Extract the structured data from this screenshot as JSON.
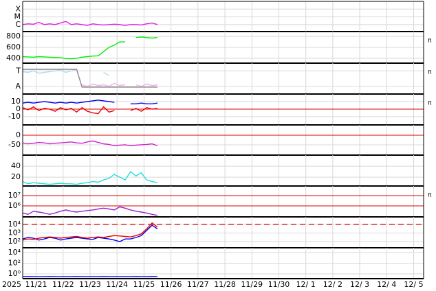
{
  "chart_data": [
    {
      "type": "line",
      "x": [
        0,
        0.2,
        0.4,
        0.6,
        0.8,
        1,
        1.2,
        1.4,
        1.6,
        1.8,
        2,
        2.2,
        2.4,
        2.6,
        2.8,
        3,
        3.2,
        3.4,
        3.6,
        3.8,
        4,
        4.2,
        4.4,
        4.6,
        4.8,
        5
      ],
      "xlim": [
        0,
        14.87
      ],
      "ylim": [
        0.1,
        4
      ],
      "yticks": [
        {
          "value": 3,
          "label": "X"
        },
        {
          "value": 2,
          "label": "M"
        },
        {
          "value": 1,
          "label": "C"
        }
      ],
      "series": [
        {
          "color": "#e020e0",
          "values": [
            1.0,
            1.1,
            1.05,
            1.3,
            1.0,
            1.1,
            1.0,
            1.2,
            1.4,
            1.0,
            1.1,
            1.0,
            0.9,
            1.1,
            1.0,
            0.95,
            1.0,
            1.05,
            1.0,
            0.9,
            1.0,
            1.0,
            0.95,
            1.1,
            1.2,
            1.0
          ]
        }
      ]
    },
    {
      "type": "line",
      "x": [
        0,
        0.2,
        0.4,
        0.6,
        0.8,
        1,
        1.2,
        1.4,
        1.6,
        1.8,
        2,
        2.2,
        2.4,
        2.6,
        2.8,
        3,
        3.2,
        3.4,
        3.6,
        3.8,
        4,
        4.2,
        4.4,
        4.6,
        4.8,
        5
      ],
      "xlim": [
        0,
        14.87
      ],
      "ylim": [
        310,
        890
      ],
      "yticks": [
        400,
        600,
        800
      ],
      "flag": "π",
      "series": [
        {
          "color": "#00ee00",
          "values": [
            430,
            425,
            420,
            430,
            425,
            420,
            415,
            410,
            395,
            390,
            400,
            420,
            430,
            440,
            445,
            520,
            600,
            640,
            700,
            700,
            null,
            780,
            790,
            780,
            770,
            780
          ]
        }
      ]
    },
    {
      "type": "line",
      "x": [
        0,
        0.2,
        0.4,
        0.6,
        0.8,
        1,
        1.2,
        1.4,
        1.6,
        1.8,
        2,
        2.2,
        2.4,
        2.6,
        2.8,
        3,
        3.2,
        3.4,
        3.6,
        3.8,
        4,
        4.2,
        4.4,
        4.6,
        4.8,
        5
      ],
      "xlim": [
        0,
        14.87
      ],
      "ylim": [
        -0.5,
        1.5
      ],
      "yticks": [
        {
          "value": 1,
          "label": "T"
        },
        {
          "value": 0,
          "label": "A"
        }
      ],
      "flag": "π",
      "series": [
        {
          "color": "#b0dcf0",
          "values": [
            0.95,
            0.9,
            1.0,
            0.85,
            0.9,
            0.95,
            1.0,
            1.05,
            0.9,
            1.0,
            1.1,
            null,
            null,
            null,
            null,
            0.9,
            0.7,
            null,
            null,
            null,
            null,
            null,
            null,
            null,
            null,
            null
          ]
        },
        {
          "color": "#f4b0ec",
          "values": [
            null,
            null,
            null,
            null,
            null,
            null,
            null,
            null,
            null,
            null,
            null,
            0.1,
            0.0,
            0.15,
            0.05,
            0.1,
            0.0,
            0.2,
            0.05,
            0.1,
            null,
            0.1,
            0.0,
            0.15,
            0.05,
            0.1
          ]
        },
        {
          "color": "#888888",
          "values": [
            1.1,
            1.1,
            1.1,
            1.1,
            1.1,
            1.1,
            1.1,
            1.1,
            1.1,
            1.1,
            1.1,
            -0.05,
            -0.05,
            -0.05,
            -0.05,
            -0.05,
            -0.05,
            -0.05,
            -0.05,
            -0.05,
            -0.05,
            -0.05,
            -0.05,
            -0.05,
            -0.05,
            -0.05
          ]
        }
      ]
    },
    {
      "type": "line",
      "x": [
        0,
        0.2,
        0.4,
        0.6,
        0.8,
        1,
        1.2,
        1.4,
        1.6,
        1.8,
        2,
        2.2,
        2.4,
        2.6,
        2.8,
        3,
        3.2,
        3.4,
        3.6,
        3.8,
        4,
        4.2,
        4.4,
        4.6,
        4.8,
        5
      ],
      "xlim": [
        0,
        14.87
      ],
      "ylim": [
        -21,
        20
      ],
      "yticks": [
        10,
        0,
        -10
      ],
      "flag": "π",
      "refs": [
        {
          "value": 0,
          "color": "#dd0000"
        }
      ],
      "series": [
        {
          "color": "#0000ee",
          "values": [
            8,
            9,
            8,
            9,
            10,
            9,
            8,
            9,
            8,
            9,
            8,
            9,
            10,
            11,
            12,
            11,
            10,
            9,
            null,
            null,
            7,
            7,
            8,
            7,
            7,
            8
          ]
        },
        {
          "color": "#ee0000",
          "values": [
            2,
            -1,
            3,
            -2,
            1,
            0,
            -3,
            2,
            -1,
            1,
            -4,
            2,
            -3,
            -5,
            -6,
            3,
            -4,
            -2,
            null,
            null,
            -2,
            1,
            -3,
            2,
            0,
            1
          ]
        }
      ]
    },
    {
      "type": "line",
      "x": [
        0,
        0.2,
        0.4,
        0.6,
        0.8,
        1,
        1.2,
        1.4,
        1.6,
        1.8,
        2,
        2.2,
        2.4,
        2.6,
        2.8,
        3,
        3.2,
        3.4,
        3.6,
        3.8,
        4,
        4.2,
        4.4,
        4.6,
        4.8,
        5
      ],
      "xlim": [
        0,
        14.87
      ],
      "ylim": [
        -104,
        54
      ],
      "yticks": [
        0,
        -50
      ],
      "refs": [
        {
          "value": 0,
          "color": "#dd0000"
        }
      ],
      "series": [
        {
          "color": "#cc22cc",
          "values": [
            -40,
            -45,
            -42,
            -38,
            -40,
            -45,
            -42,
            -40,
            -38,
            -35,
            -40,
            -42,
            -35,
            -30,
            -38,
            -45,
            -48,
            -55,
            -52,
            -50,
            -55,
            -52,
            -50,
            -48,
            -45,
            -55
          ]
        }
      ]
    },
    {
      "type": "line",
      "x": [
        0,
        0.2,
        0.4,
        0.6,
        0.8,
        1,
        1.2,
        1.4,
        1.6,
        1.8,
        2,
        2.2,
        2.4,
        2.6,
        2.8,
        3,
        3.2,
        3.4,
        3.6,
        3.8,
        4,
        4.2,
        4.4,
        4.6,
        4.8,
        5
      ],
      "xlim": [
        0,
        14.87
      ],
      "ylim": [
        4,
        60
      ],
      "yticks": [
        40,
        20
      ],
      "series": [
        {
          "color": "#22dddd",
          "values": [
            12,
            8,
            10,
            9,
            8,
            7,
            8,
            9,
            8,
            8,
            7,
            9,
            10,
            12,
            11,
            15,
            18,
            25,
            20,
            15,
            30,
            22,
            28,
            15,
            12,
            10
          ]
        }
      ]
    },
    {
      "type": "line",
      "x": [
        0,
        0.2,
        0.4,
        0.6,
        0.8,
        1,
        1.2,
        1.4,
        1.6,
        1.8,
        2,
        2.2,
        2.4,
        2.6,
        2.8,
        3,
        3.2,
        3.4,
        3.6,
        3.8,
        4,
        4.2,
        4.4,
        4.6,
        4.8,
        5
      ],
      "xlim": [
        0,
        14.87
      ],
      "ylim": [
        85000,
        85000000
      ],
      "log": true,
      "yticks": [
        {
          "value": 10000000,
          "label": "10⁷"
        },
        {
          "value": 1000000,
          "label": "10⁶"
        }
      ],
      "flag": "π",
      "refs": [
        {
          "value": 10000000,
          "color": "#dd0000"
        },
        {
          "value": 1000000,
          "color": "#dd0000"
        }
      ],
      "series": [
        {
          "color": "#9922cc",
          "values": [
            200000,
            150000,
            300000,
            250000,
            200000,
            150000,
            200000,
            300000,
            400000,
            300000,
            250000,
            300000,
            350000,
            400000,
            500000,
            600000,
            500000,
            400000,
            800000,
            600000,
            400000,
            300000,
            250000,
            200000,
            150000,
            120000
          ]
        }
      ]
    },
    {
      "type": "line",
      "x": [
        0,
        0.2,
        0.4,
        0.6,
        0.8,
        1,
        1.2,
        1.4,
        1.6,
        1.8,
        2,
        2.2,
        2.4,
        2.6,
        2.8,
        3,
        3.2,
        3.4,
        3.6,
        3.8,
        4,
        4.2,
        4.4,
        4.6,
        4.8,
        5
      ],
      "xlim": [
        0,
        14.87
      ],
      "ylim": [
        19,
        75900
      ],
      "log": true,
      "yticks": [
        {
          "value": 10000,
          "label": "10⁴"
        },
        {
          "value": 1000,
          "label": "10³"
        },
        {
          "value": 100,
          "label": "10²"
        }
      ],
      "refs": [
        {
          "value": 10000,
          "color": "#dd0000",
          "dash": true
        }
      ],
      "series": [
        {
          "color": "#0000ee",
          "values": [
            200,
            300,
            250,
            150,
            200,
            300,
            250,
            150,
            200,
            250,
            300,
            250,
            200,
            180,
            300,
            250,
            200,
            150,
            100,
            200,
            200,
            300,
            500,
            2000,
            8000,
            3000
          ]
        },
        {
          "color": "#ee0000",
          "values": [
            150,
            200,
            180,
            250,
            300,
            350,
            300,
            250,
            300,
            350,
            400,
            300,
            250,
            300,
            350,
            300,
            400,
            500,
            450,
            400,
            350,
            500,
            800,
            3000,
            15000,
            5000
          ]
        }
      ]
    },
    {
      "type": "line",
      "x": [
        0,
        0.2,
        0.4,
        0.6,
        0.8,
        1,
        1.2,
        1.4,
        1.6,
        1.8,
        2,
        2.2,
        2.4,
        2.6,
        2.8,
        3,
        3.2,
        3.4,
        3.6,
        3.8,
        4,
        4.2,
        4.4,
        4.6,
        4.8,
        5
      ],
      "xlim": [
        0,
        14.87
      ],
      "ylim": [
        0.126,
        79400
      ],
      "log": true,
      "yticks": [
        {
          "value": 10000,
          "label": "10⁴"
        },
        {
          "value": 100,
          "label": "10²"
        },
        {
          "value": 1,
          "label": "10⁰"
        }
      ],
      "xlabel": "2025",
      "xticks": [
        {
          "value": 0.5,
          "label": "11/21"
        },
        {
          "value": 1.5,
          "label": "11/22"
        },
        {
          "value": 2.5,
          "label": "11/23"
        },
        {
          "value": 3.5,
          "label": "11/24"
        },
        {
          "value": 4.5,
          "label": "11/25"
        },
        {
          "value": 5.5,
          "label": "11/26"
        },
        {
          "value": 6.5,
          "label": "11/27"
        },
        {
          "value": 7.5,
          "label": "11/28"
        },
        {
          "value": 8.5,
          "label": "11/29"
        },
        {
          "value": 9.5,
          "label": "11/30"
        },
        {
          "value": 10.5,
          "label": "12/ 1"
        },
        {
          "value": 11.5,
          "label": "12/ 2"
        },
        {
          "value": 12.5,
          "label": "12/ 3"
        },
        {
          "value": 13.5,
          "label": "12/ 4"
        },
        {
          "value": 14.5,
          "label": "12/ 5"
        }
      ],
      "series": [
        {
          "color": "#0000ee",
          "values": [
            0.3,
            0.32,
            0.3,
            0.28,
            0.3,
            0.31,
            0.3,
            0.29,
            0.3,
            0.3,
            0.31,
            0.3,
            0.29,
            0.3,
            0.3,
            0.31,
            0.3,
            0.3,
            0.29,
            0.3,
            0.3,
            0.31,
            0.3,
            0.3,
            0.32,
            0.3
          ]
        }
      ]
    }
  ]
}
